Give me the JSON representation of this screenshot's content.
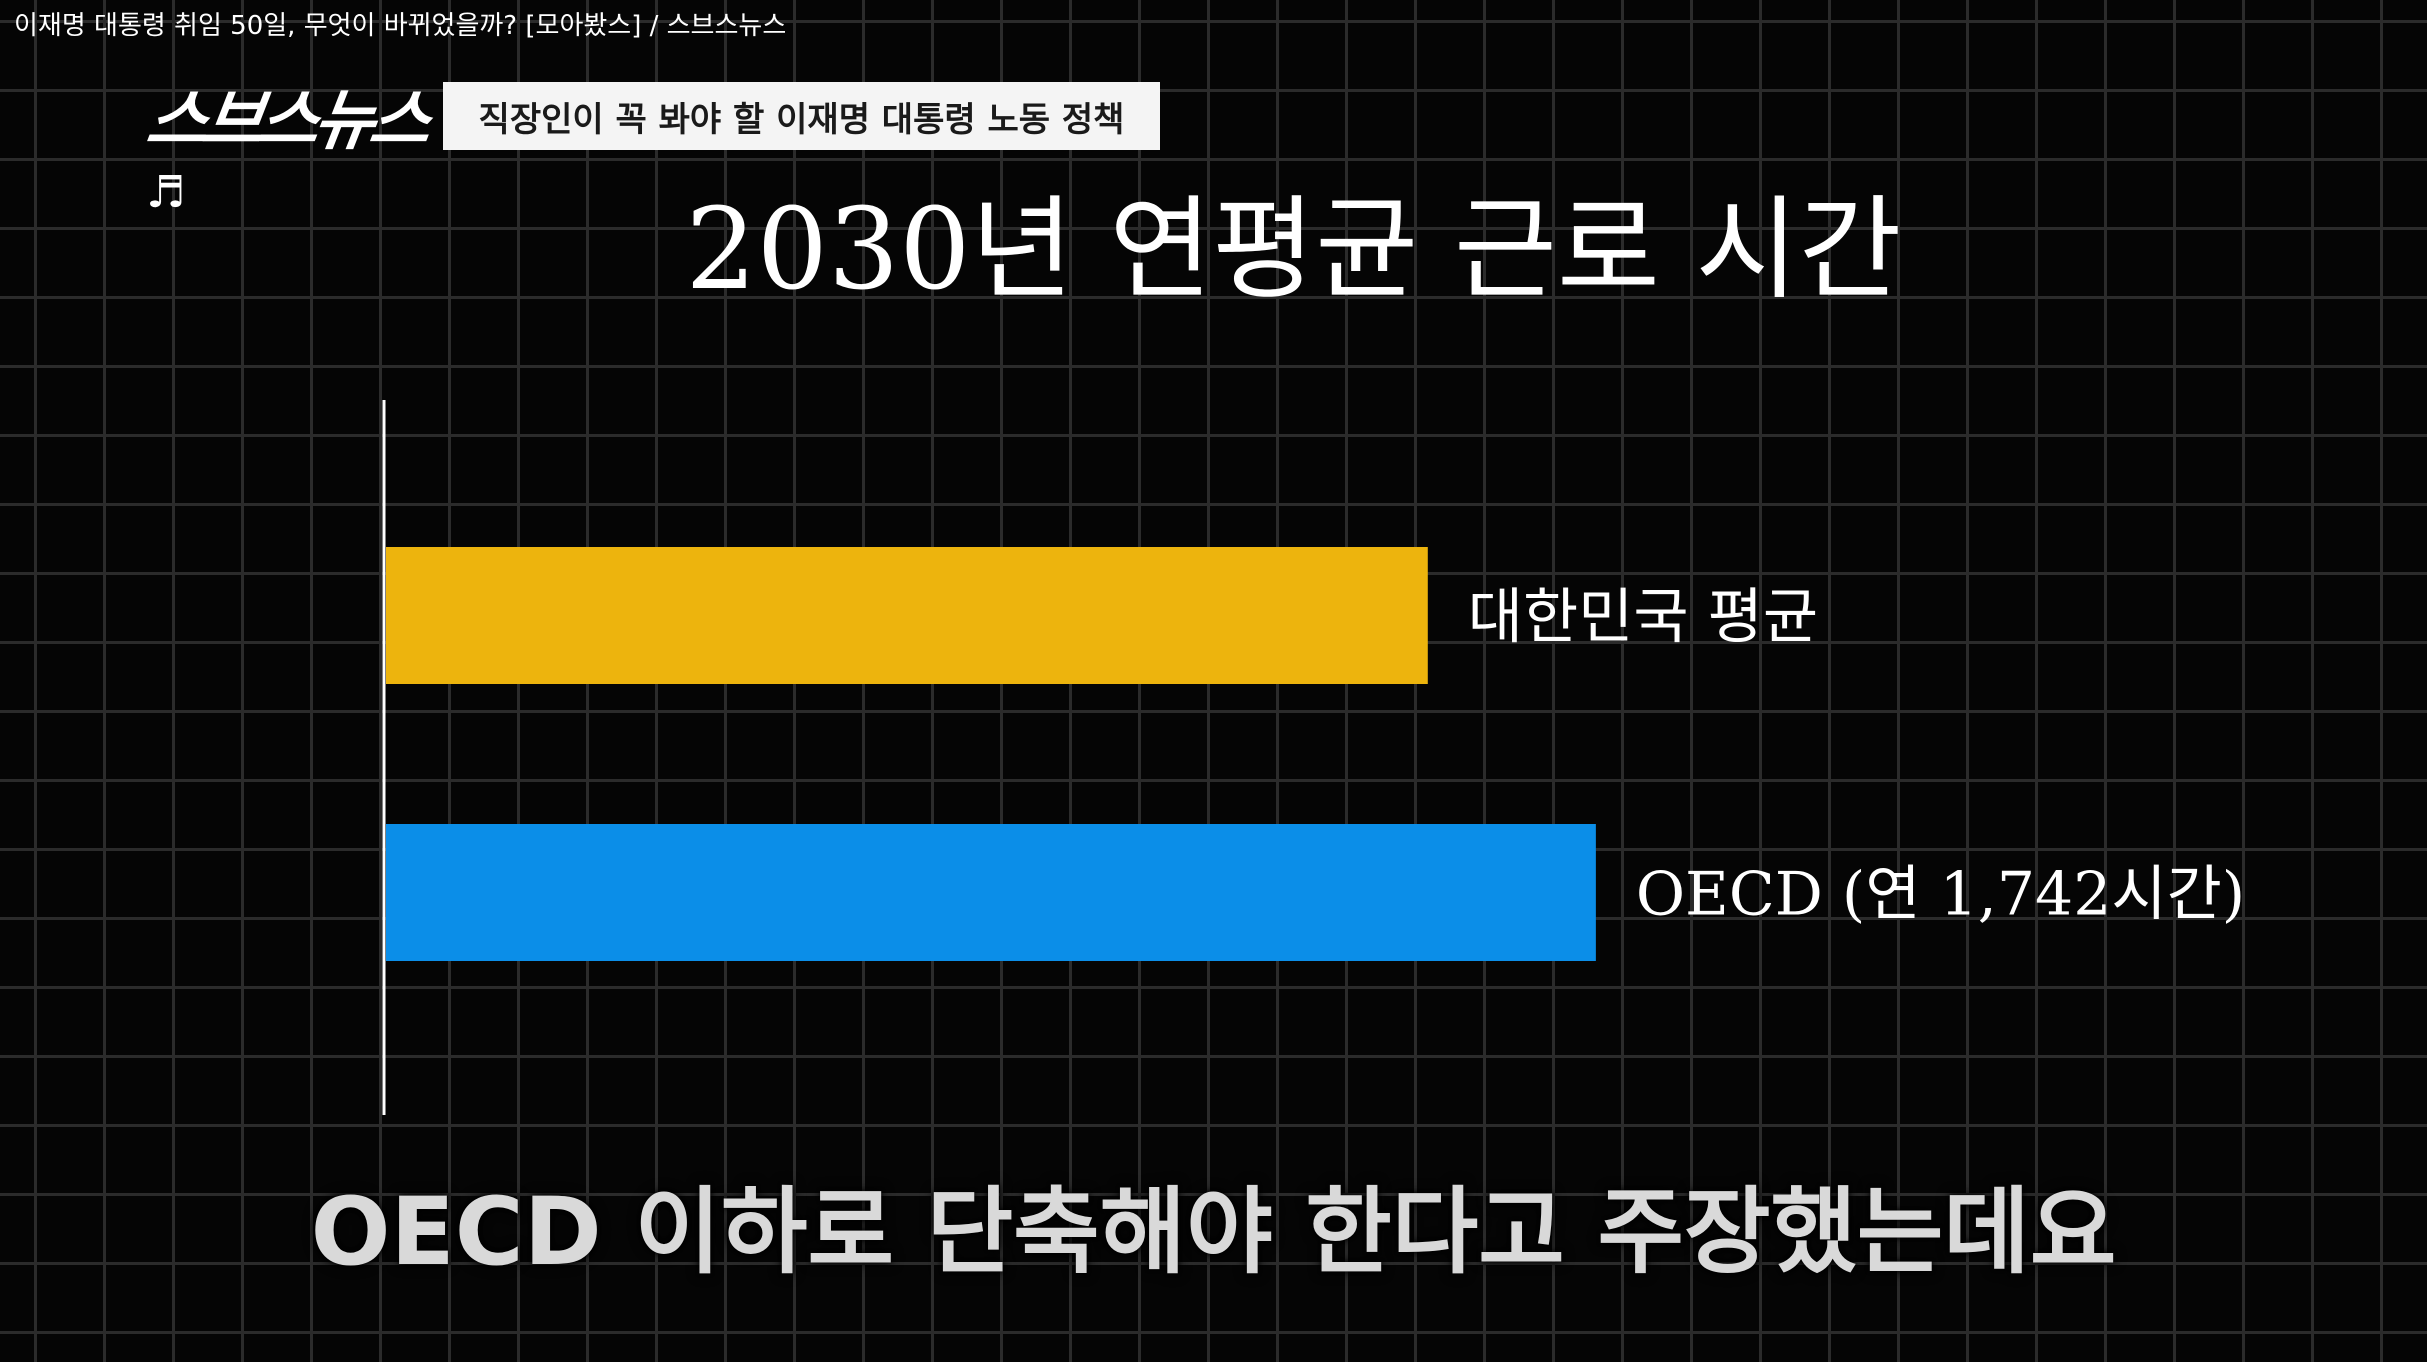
{
  "video_title": "이재명 대통령 취임 50일, 무엇이 바뀌었을까? [모아봤스] / 스브스뉴스",
  "logo_text": "스브스뉴스",
  "program_banner": "직장인이 꼭 봐야 할 이재명 대통령 노동 정책",
  "music_icon": "♬",
  "subtitle": "OECD 이하로 단축해야 한다고 주장했는데요",
  "chart_data": {
    "type": "bar",
    "orientation": "horizontal",
    "title": "2030년 연평균 근로 시간",
    "categories": [
      "대한민국 평균",
      "OECD (연 1,742시간)"
    ],
    "values": [
      1500,
      1742
    ],
    "colors": [
      "#edb40d",
      "#0b8ee8"
    ],
    "xlim": [
      0,
      2010
    ],
    "grid": true,
    "legend": "none"
  }
}
